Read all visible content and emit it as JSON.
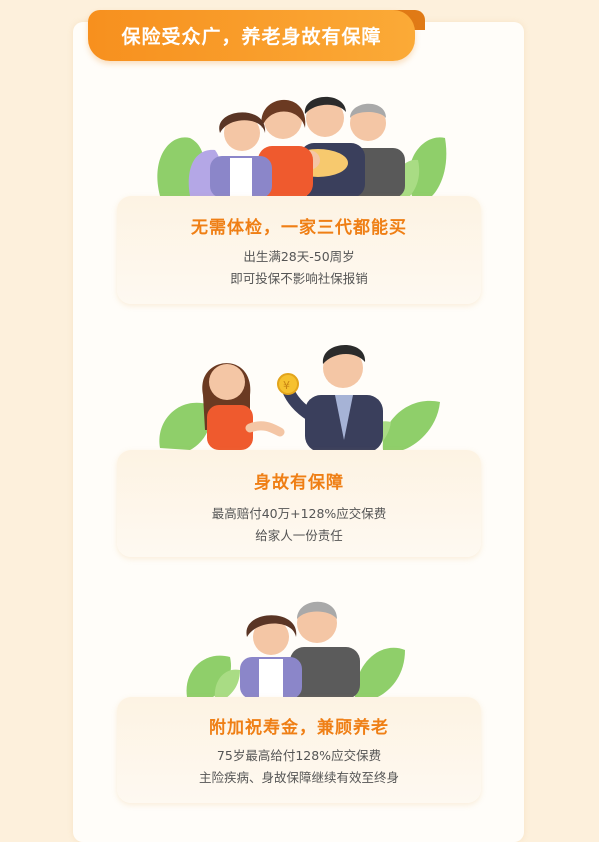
{
  "banner": {
    "title": "保险受众广，养老身故有保障"
  },
  "sections": [
    {
      "title": "无需体检，一家三代都能买",
      "lines": [
        "出生满28天-50周岁",
        "即可投保不影响社保报销"
      ],
      "illustration": "family-group-illustration"
    },
    {
      "title": "身故有保障",
      "lines": [
        "最高赔付40万+128%应交保费",
        "给家人一份责任"
      ],
      "illustration": "couple-coin-illustration"
    },
    {
      "title": "附加祝寿金，兼顾养老",
      "lines": [
        "75岁最高给付128%应交保费",
        "主险疾病、身故保障继续有效至终身"
      ],
      "illustration": "elderly-couple-illustration"
    }
  ],
  "colors": {
    "accent": "#f7901e",
    "title": "#ef7f15",
    "background": "#fdf0dc"
  }
}
